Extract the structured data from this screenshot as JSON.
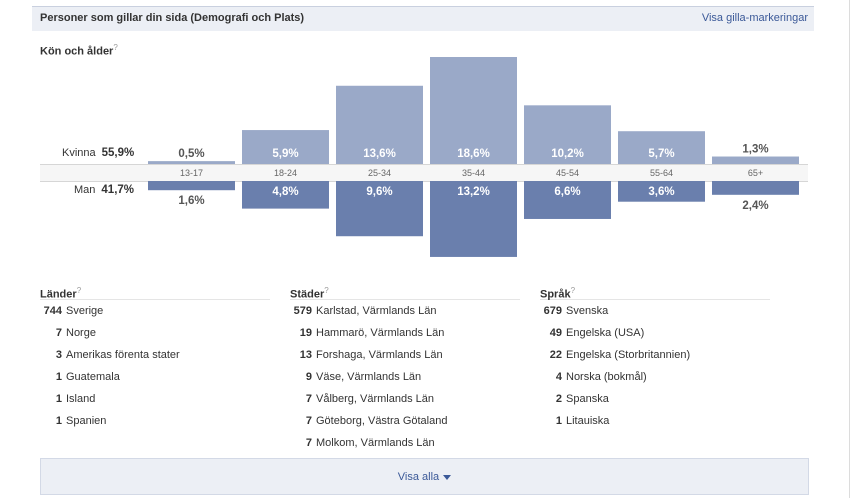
{
  "header": {
    "title": "Personer som gillar din sida (Demografi och Plats)",
    "link": "Visa gilla-markeringar"
  },
  "demographics": {
    "title": "Kön och ålder",
    "help": "?",
    "female_label": "Kvinna",
    "female_total": "55,9%",
    "male_label": "Man",
    "male_total": "41,7%"
  },
  "chart_data": {
    "type": "bar",
    "categories": [
      "13-17",
      "18-24",
      "25-34",
      "35-44",
      "45-54",
      "55-64",
      "65+"
    ],
    "series": [
      {
        "name": "Kvinna",
        "values": [
          0.5,
          5.9,
          13.6,
          18.6,
          10.2,
          5.7,
          1.3
        ],
        "labels": [
          "0,5%",
          "5,9%",
          "13,6%",
          "18,6%",
          "10,2%",
          "5,7%",
          "1,3%"
        ]
      },
      {
        "name": "Man",
        "values": [
          1.6,
          4.8,
          9.6,
          13.2,
          6.6,
          3.6,
          2.4
        ],
        "labels": [
          "1,6%",
          "4,8%",
          "9,6%",
          "13,2%",
          "6,6%",
          "3,6%",
          "2,4%"
        ]
      }
    ],
    "colors": {
      "female": "#9aa9c8",
      "male": "#6a7fad"
    }
  },
  "countries": {
    "title": "Länder",
    "help": "?",
    "items": [
      {
        "count": "744",
        "name": "Sverige"
      },
      {
        "count": "7",
        "name": "Norge"
      },
      {
        "count": "3",
        "name": "Amerikas förenta stater"
      },
      {
        "count": "1",
        "name": "Guatemala"
      },
      {
        "count": "1",
        "name": "Island"
      },
      {
        "count": "1",
        "name": "Spanien"
      }
    ]
  },
  "cities": {
    "title": "Städer",
    "help": "?",
    "items": [
      {
        "count": "579",
        "name": "Karlstad, Värmlands Län"
      },
      {
        "count": "19",
        "name": "Hammarö, Värmlands Län"
      },
      {
        "count": "13",
        "name": "Forshaga, Värmlands Län"
      },
      {
        "count": "9",
        "name": "Väse, Värmlands Län"
      },
      {
        "count": "7",
        "name": "Vålberg, Värmlands Län"
      },
      {
        "count": "7",
        "name": "Göteborg, Västra Götaland"
      },
      {
        "count": "7",
        "name": "Molkom, Värmlands Län"
      }
    ]
  },
  "languages": {
    "title": "Språk",
    "help": "?",
    "items": [
      {
        "count": "679",
        "name": "Svenska"
      },
      {
        "count": "49",
        "name": "Engelska (USA)"
      },
      {
        "count": "22",
        "name": "Engelska (Storbritannien)"
      },
      {
        "count": "4",
        "name": "Norska (bokmål)"
      },
      {
        "count": "2",
        "name": "Spanska"
      },
      {
        "count": "1",
        "name": "Litauiska"
      }
    ]
  },
  "footer": {
    "link": "Visa alla"
  }
}
